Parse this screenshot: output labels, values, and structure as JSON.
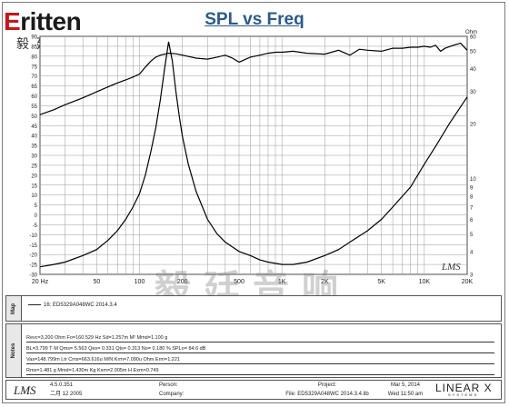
{
  "logo": {
    "word_first": "E",
    "word_rest": "ritten",
    "chinese": "毅廷音响"
  },
  "chart_data": {
    "type": "line",
    "title": "SPL vs Freq",
    "xscale": "log",
    "xlim": [
      20,
      20000
    ],
    "ylim": [
      -30,
      90
    ],
    "y2lim": [
      3,
      60
    ],
    "y2scale": "log",
    "y2label": "Ohm",
    "x_ticks": [
      "20 Hz",
      "50",
      "100",
      "200",
      "500",
      "1K",
      "2K",
      "5K",
      "10K",
      "20K"
    ],
    "y_ticks": [
      -30,
      -25,
      -20,
      -15,
      -10,
      -5,
      0,
      5,
      10,
      15,
      20,
      25,
      30,
      35,
      40,
      45,
      50,
      55,
      60,
      65,
      70,
      75,
      80,
      85,
      90
    ],
    "y2_ticks": [
      "3",
      "4",
      "5",
      "6",
      "7",
      "8",
      "9",
      "10",
      "20",
      "30",
      "40",
      "50",
      "60"
    ],
    "grid": true,
    "series": [
      {
        "name": "SPL",
        "axis": "left",
        "color": "#000000",
        "x": [
          20,
          25,
          30,
          40,
          50,
          60,
          70,
          80,
          90,
          100,
          110,
          120,
          130,
          140,
          160,
          180,
          200,
          250,
          300,
          350,
          400,
          450,
          500,
          600,
          700,
          800,
          900,
          1000,
          1200,
          1500,
          2000,
          2500,
          3000,
          3500,
          4000,
          5000,
          6000,
          7000,
          8000,
          9000,
          10000,
          11000,
          12000,
          13000,
          14000,
          16000,
          18000,
          20000
        ],
        "y": [
          50.5,
          53,
          55.5,
          59,
          62,
          64.5,
          66.5,
          68,
          69.5,
          71,
          74.5,
          77.5,
          79.5,
          80.5,
          81.5,
          81.2,
          80.5,
          79,
          78.5,
          79.5,
          80.5,
          79,
          77,
          79.5,
          80.5,
          81.5,
          82,
          82,
          82.5,
          81.5,
          81,
          83,
          80.5,
          83.5,
          83,
          82.5,
          84,
          84,
          84.5,
          84.5,
          85,
          84.5,
          85.5,
          82.5,
          84,
          85.5,
          86.5,
          83
        ]
      },
      {
        "name": "Impedance",
        "axis": "right",
        "color": "#000000",
        "x": [
          20,
          25,
          30,
          40,
          50,
          60,
          70,
          80,
          90,
          100,
          110,
          120,
          130,
          140,
          150,
          160,
          170,
          180,
          190,
          200,
          220,
          250,
          300,
          350,
          400,
          500,
          600,
          700,
          800,
          1000,
          1200,
          1500,
          2000,
          2500,
          3000,
          4000,
          5000,
          6000,
          8000,
          10000,
          12000,
          15000,
          20000
        ],
        "y": [
          3.3,
          3.4,
          3.5,
          3.8,
          4.1,
          4.6,
          5.2,
          6.0,
          7.0,
          8.3,
          10.5,
          14.0,
          19.0,
          27.0,
          40.0,
          56.0,
          44.0,
          30.0,
          22.0,
          17.0,
          12.0,
          8.5,
          6.0,
          5.0,
          4.5,
          4.0,
          3.8,
          3.6,
          3.5,
          3.4,
          3.4,
          3.5,
          3.8,
          4.1,
          4.5,
          5.2,
          6.0,
          7.0,
          9.0,
          12.0,
          15.0,
          20.0,
          28.0
        ]
      }
    ]
  },
  "watermark": "毅廷音响",
  "lms_mark": "LMS",
  "map": {
    "label": "Map",
    "entry": "16: ED5329A048WC  2014.3.4"
  },
  "notes": {
    "label": "Notes",
    "rows": [
      "Revc=3.200 Ohm  Fo=160.529 Hz  Sd=1.257m M²  Mmd=1.100 g",
      "BL=3.799 T·M  Qms= 5.563  Qes= 0.331  Qts= 0.313  No= 0.180 %  SPLo= 84.6 dB",
      "Vas=148.799m Ltr  Cms=663.616u M/N  Krm=7.090u Ohm  Erm=1.221",
      "Rms=1.481 g  Mmd=1.430m Kg  Kxm=2.005m H  Exm=0.749"
    ]
  },
  "footer": {
    "lms_logo": "LMS",
    "version": "4.5.0.351",
    "version_date": "二月 12 2005",
    "person_label": "Person:",
    "company_label": "Company:",
    "project_label": "Project:",
    "file_label": "File: ED5329A048WC  2014.3.4.lib",
    "date": "Mar  5, 2014",
    "time": "Wed 11:50 am",
    "brand": "LINEAR X",
    "brand_sub": "SYSTEMS"
  }
}
